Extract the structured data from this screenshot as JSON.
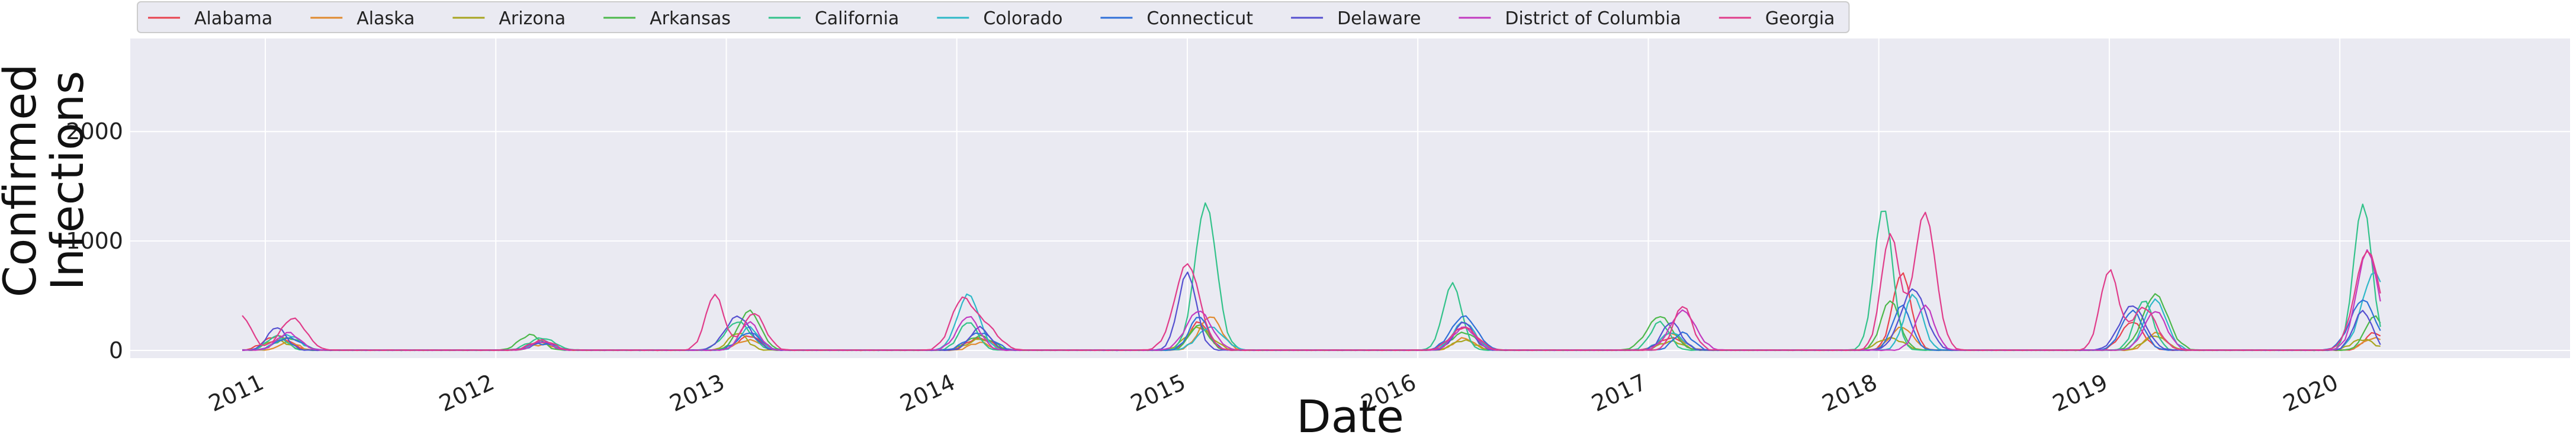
{
  "chart_data": {
    "type": "line",
    "title": "",
    "xlabel": "Date",
    "ylabel": "Confirmed\nInfections",
    "ylim": [
      -70,
      2850
    ],
    "xlim": [
      "2010-06-01",
      "2020-12-31"
    ],
    "grid": true,
    "legend_position": "top-left",
    "x_ticks": [
      "2011",
      "2012",
      "2013",
      "2014",
      "2015",
      "2016",
      "2017",
      "2018",
      "2019",
      "2020"
    ],
    "y_ticks": [
      0,
      1000,
      2000
    ],
    "series": [
      {
        "name": "Alabama",
        "color": "#e8424f",
        "peaks": [
          [
            2011.05,
            120
          ],
          [
            2012.2,
            60
          ],
          [
            2013.1,
            120
          ],
          [
            2014.1,
            100
          ],
          [
            2015.05,
            250
          ],
          [
            2016.2,
            200
          ],
          [
            2017.1,
            100
          ],
          [
            2018.1,
            700
          ],
          [
            2019.1,
            250
          ],
          [
            2020.15,
            150
          ]
        ]
      },
      {
        "name": "Alaska",
        "color": "#e08a2e",
        "peaks": [
          [
            2011.1,
            60
          ],
          [
            2012.2,
            40
          ],
          [
            2013.1,
            80
          ],
          [
            2014.1,
            60
          ],
          [
            2015.1,
            300
          ],
          [
            2016.2,
            100
          ],
          [
            2017.1,
            150
          ],
          [
            2018.1,
            200
          ],
          [
            2019.2,
            150
          ],
          [
            2020.15,
            100
          ]
        ]
      },
      {
        "name": "Arizona",
        "color": "#a8a520",
        "peaks": [
          [
            2011.05,
            80
          ],
          [
            2012.2,
            60
          ],
          [
            2013.05,
            150
          ],
          [
            2014.1,
            90
          ],
          [
            2015.05,
            200
          ],
          [
            2016.2,
            80
          ],
          [
            2017.1,
            70
          ],
          [
            2018.05,
            100
          ],
          [
            2019.2,
            120
          ],
          [
            2020.1,
            90
          ]
        ]
      },
      {
        "name": "Arkansas",
        "color": "#4cb84a",
        "peaks": [
          [
            2011.1,
            100
          ],
          [
            2012.15,
            130
          ],
          [
            2013.1,
            350
          ],
          [
            2014.1,
            120
          ],
          [
            2015.05,
            220
          ],
          [
            2016.2,
            150
          ],
          [
            2017.05,
            300
          ],
          [
            2018.05,
            450
          ],
          [
            2019.2,
            500
          ],
          [
            2020.15,
            300
          ]
        ]
      },
      {
        "name": "California",
        "color": "#33c28a",
        "peaks": [
          [
            2011.05,
            120
          ],
          [
            2012.2,
            100
          ],
          [
            2013.05,
            250
          ],
          [
            2014.05,
            250
          ],
          [
            2015.08,
            1330
          ],
          [
            2016.15,
            600
          ],
          [
            2017.05,
            250
          ],
          [
            2018.02,
            1300
          ],
          [
            2019.15,
            450
          ],
          [
            2020.1,
            1330
          ]
        ]
      },
      {
        "name": "Colorado",
        "color": "#2eb8c8",
        "peaks": [
          [
            2011.1,
            130
          ],
          [
            2012.2,
            80
          ],
          [
            2013.1,
            200
          ],
          [
            2014.05,
            500
          ],
          [
            2015.1,
            200
          ],
          [
            2016.2,
            250
          ],
          [
            2017.1,
            150
          ],
          [
            2018.15,
            500
          ],
          [
            2019.2,
            450
          ],
          [
            2020.15,
            700
          ]
        ]
      },
      {
        "name": "Connecticut",
        "color": "#3070d8",
        "peaks": [
          [
            2011.1,
            100
          ],
          [
            2012.2,
            50
          ],
          [
            2013.1,
            150
          ],
          [
            2014.1,
            150
          ],
          [
            2015.05,
            300
          ],
          [
            2016.2,
            300
          ],
          [
            2017.15,
            150
          ],
          [
            2018.1,
            400
          ],
          [
            2019.1,
            350
          ],
          [
            2020.1,
            450
          ]
        ]
      },
      {
        "name": "Delaware",
        "color": "#5550d0",
        "peaks": [
          [
            2011.05,
            200
          ],
          [
            2012.2,
            60
          ],
          [
            2013.05,
            300
          ],
          [
            2014.1,
            200
          ],
          [
            2015.0,
            700
          ],
          [
            2016.2,
            250
          ],
          [
            2017.1,
            250
          ],
          [
            2018.15,
            550
          ],
          [
            2019.1,
            400
          ],
          [
            2020.1,
            350
          ]
        ]
      },
      {
        "name": "District of Columbia",
        "color": "#c23ac0",
        "peaks": [
          [
            2011.1,
            150
          ],
          [
            2012.2,
            70
          ],
          [
            2013.1,
            250
          ],
          [
            2014.05,
            300
          ],
          [
            2015.05,
            350
          ],
          [
            2016.2,
            200
          ],
          [
            2017.15,
            350
          ],
          [
            2018.2,
            400
          ],
          [
            2019.2,
            350
          ],
          [
            2020.12,
            900
          ]
        ]
      },
      {
        "name": "Georgia",
        "color": "#e03c8a",
        "peaks": [
          [
            2010.9,
            300
          ],
          [
            2011.12,
            280
          ],
          [
            2012.2,
            80
          ],
          [
            2012.95,
            500
          ],
          [
            2013.12,
            330
          ],
          [
            2014.02,
            430
          ],
          [
            2014.12,
            220
          ],
          [
            2015.0,
            780
          ],
          [
            2016.2,
            200
          ],
          [
            2017.15,
            400
          ],
          [
            2018.05,
            1050
          ],
          [
            2018.2,
            1250
          ],
          [
            2019.0,
            720
          ],
          [
            2019.15,
            380
          ],
          [
            2020.12,
            900
          ]
        ]
      }
    ]
  }
}
